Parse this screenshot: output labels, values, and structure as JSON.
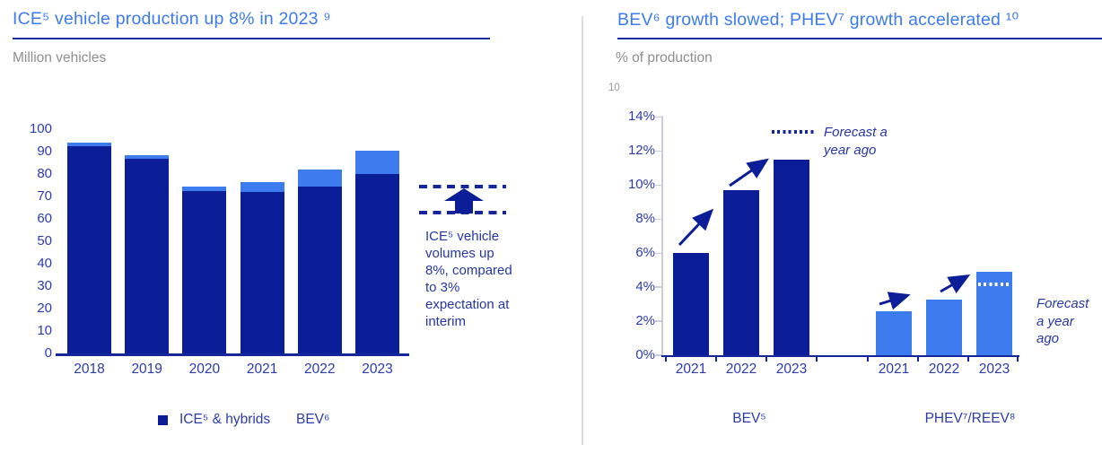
{
  "left_panel": {
    "title": "ICE⁵ vehicle production up 8% in 2023 ⁹",
    "subtitle": "Million vehicles",
    "legend": [
      {
        "label": "ICE⁵ & hybrids",
        "swatch": "#0b1e97"
      },
      {
        "label": "BEV⁶",
        "swatch": null
      }
    ],
    "annotation": {
      "text": "ICE⁵ vehicle volumes up 8%, compared to 3% expectation at interim",
      "lines": [
        "ICE⁵ vehicle",
        "volumes up",
        "8%, compared",
        "to 3%",
        "expectation at",
        "interim"
      ]
    }
  },
  "right_panel": {
    "title": "BEV⁶ growth slowed; PHEV⁷ growth accelerated ¹⁰",
    "subtitle": "% of production",
    "footnote": "10",
    "group_labels": [
      "BEV⁵",
      "PHEV⁷/REEV⁸"
    ],
    "bev_forecast_label_lines": [
      "Forecast a",
      "year ago"
    ],
    "phev_forecast_label_lines": [
      "Forecast",
      "a year",
      "ago"
    ]
  },
  "colors": {
    "navy": "#0b1e97",
    "light_blue": "#3d7cef",
    "title_blue": "#3c7bf2",
    "rule_navy": "#1b2da5",
    "axis_text": "#2c3aad",
    "gray_text": "#8e8e8e"
  },
  "chart_data": [
    {
      "type": "bar",
      "stacked": true,
      "title": "ICE⁵ vehicle production up 8% in 2023 ⁹",
      "ylabel": "Million vehicles",
      "categories": [
        "2018",
        "2019",
        "2020",
        "2021",
        "2022",
        "2023"
      ],
      "series": [
        {
          "name": "ICE⁵ & hybrids",
          "color": "#0b1e97",
          "values": [
            92.5,
            87,
            72.5,
            72,
            74.5,
            80
          ]
        },
        {
          "name": "BEV⁶",
          "color": "#3d7cef",
          "values": [
            1.5,
            1.5,
            2,
            4.5,
            7.5,
            10.5
          ]
        }
      ],
      "ylim": [
        0,
        100
      ],
      "yticks": [
        0,
        10,
        20,
        30,
        40,
        50,
        60,
        70,
        80,
        90,
        100
      ],
      "grid": false,
      "legend_position": "bottom"
    },
    {
      "type": "bar",
      "title": "BEV⁶ growth slowed; PHEV⁷ growth accelerated ¹⁰",
      "ylabel": "% of production",
      "ylim": [
        0,
        14
      ],
      "yticks": [
        0,
        2,
        4,
        6,
        8,
        10,
        12,
        14
      ],
      "yticklabels": [
        "0%",
        "2%",
        "4%",
        "6%",
        "8%",
        "10%",
        "12%",
        "14%"
      ],
      "grid": false,
      "groups": [
        {
          "label": "BEV⁵",
          "color": "#0b1e97",
          "categories": [
            "2021",
            "2022",
            "2023"
          ],
          "values": [
            6.0,
            9.7,
            11.5
          ],
          "forecast": {
            "label": "Forecast a year ago",
            "value": 13.1,
            "style": "dotted navy line above 2023 bar"
          }
        },
        {
          "label": "PHEV⁷/REEV⁸",
          "color": "#3d7cef",
          "categories": [
            "2021",
            "2022",
            "2023"
          ],
          "values": [
            2.6,
            3.3,
            4.9
          ],
          "forecast": {
            "label": "Forecast a year ago",
            "value": 4.2,
            "style": "dotted white line inside 2023 bar"
          }
        }
      ],
      "annotations": "upward trend arrows between consecutive year bars in each group"
    }
  ]
}
